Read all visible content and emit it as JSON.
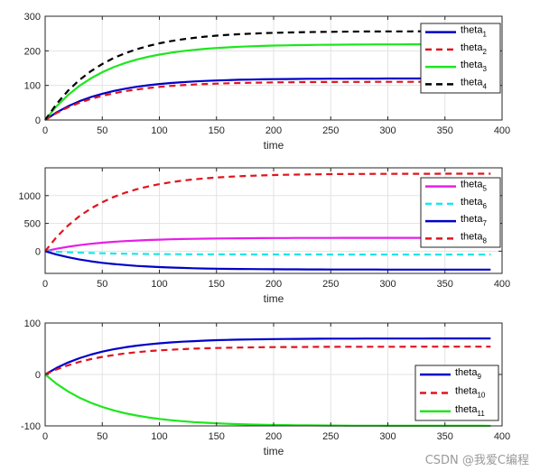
{
  "watermark": "CSDN @我爱C编程",
  "colors": {
    "blue": "#0000c8",
    "red": "#e0141e",
    "green": "#1ee61e",
    "black": "#000000",
    "magenta": "#e61ee6",
    "cyan": "#1ee6e6"
  },
  "chart_data": [
    {
      "type": "line",
      "xlabel": "time",
      "ylabel": "",
      "xlim": [
        0,
        400
      ],
      "ylim": [
        0,
        300
      ],
      "xticks": [
        0,
        50,
        100,
        150,
        200,
        250,
        300,
        350,
        400
      ],
      "yticks": [
        0,
        100,
        200,
        300
      ],
      "grid": true,
      "legend_position": "top-right",
      "x": [
        0,
        10,
        20,
        30,
        40,
        50,
        60,
        70,
        80,
        90,
        100,
        110,
        120,
        130,
        140,
        150,
        160,
        170,
        180,
        190,
        200,
        210,
        220,
        230,
        240,
        250,
        260,
        270,
        280,
        290,
        300,
        310,
        320,
        330,
        340,
        350,
        360,
        370,
        380,
        390
      ],
      "series": [
        {
          "name": "theta",
          "sub": "1",
          "color": "#0000c8",
          "dash": "solid",
          "values": [
            0,
            21.8,
            39.6,
            54.2,
            66.2,
            76.0,
            84.0,
            90.6,
            96.0,
            100.4,
            104.0,
            107.0,
            109.4,
            111.4,
            113.0,
            114.3,
            115.4,
            116.3,
            117.0,
            117.6,
            118.1,
            118.5,
            118.8,
            119.1,
            119.3,
            119.5,
            119.6,
            119.7,
            119.8,
            119.8,
            119.9,
            119.9,
            119.9,
            119.9,
            120.0,
            120.0,
            120.0,
            120.0,
            120.0,
            120.0
          ]
        },
        {
          "name": "theta",
          "sub": "2",
          "color": "#e0141e",
          "dash": "dashed",
          "values": [
            0,
            20.0,
            36.4,
            49.8,
            60.9,
            69.9,
            77.3,
            83.4,
            88.3,
            92.4,
            95.7,
            98.5,
            100.7,
            102.5,
            104.0,
            105.2,
            106.2,
            107.0,
            107.7,
            108.2,
            108.7,
            109.0,
            109.3,
            109.6,
            109.8,
            109.9,
            110.0,
            110.1,
            110.2,
            110.3,
            110.3,
            110.3,
            110.4,
            110.4,
            110.4,
            110.4,
            110.4,
            110.4,
            110.5,
            110.5
          ]
        },
        {
          "name": "theta",
          "sub": "3",
          "color": "#1ee61e",
          "dash": "solid",
          "values": [
            0,
            39.6,
            72.0,
            98.6,
            120.3,
            138.2,
            152.8,
            164.8,
            174.6,
            182.6,
            189.2,
            194.6,
            199.1,
            202.7,
            205.7,
            208.1,
            210.1,
            211.7,
            213.1,
            214.2,
            215.1,
            215.8,
            216.4,
            216.9,
            217.3,
            217.6,
            217.9,
            218.1,
            218.3,
            218.5,
            218.6,
            218.7,
            218.8,
            218.8,
            218.9,
            218.9,
            218.9,
            219.0,
            219.0,
            219.0
          ]
        },
        {
          "name": "theta",
          "sub": "4",
          "color": "#000000",
          "dash": "dashed",
          "values": [
            0,
            46.4,
            84.4,
            115.6,
            141.1,
            162.0,
            179.1,
            193.1,
            204.6,
            214.0,
            221.7,
            228.1,
            233.3,
            237.5,
            241.0,
            243.9,
            246.2,
            248.1,
            249.7,
            251.0,
            252.0,
            252.9,
            253.6,
            254.2,
            254.6,
            255.0,
            255.3,
            255.6,
            255.8,
            256.0,
            256.1,
            256.2,
            256.3,
            256.4,
            256.5,
            256.5,
            256.5,
            256.6,
            256.6,
            256.6
          ]
        }
      ]
    },
    {
      "type": "line",
      "xlabel": "time",
      "ylabel": "",
      "xlim": [
        0,
        400
      ],
      "ylim": [
        -400,
        1500
      ],
      "xticks": [
        0,
        50,
        100,
        150,
        200,
        250,
        300,
        350,
        400
      ],
      "yticks": [
        0,
        500,
        1000
      ],
      "grid": true,
      "legend_position": "top-right",
      "x": [
        0,
        10,
        20,
        30,
        40,
        50,
        60,
        70,
        80,
        90,
        100,
        110,
        120,
        130,
        140,
        150,
        160,
        170,
        180,
        190,
        200,
        210,
        220,
        230,
        240,
        250,
        260,
        270,
        280,
        290,
        300,
        310,
        320,
        330,
        340,
        350,
        360,
        370,
        380,
        390
      ],
      "series": [
        {
          "name": "theta",
          "sub": "5",
          "color": "#e61ee6",
          "dash": "solid",
          "values": [
            0,
            43.5,
            79.1,
            108.3,
            132.2,
            151.7,
            167.8,
            180.9,
            191.7,
            200.5,
            207.7,
            213.7,
            218.6,
            222.6,
            225.8,
            228.5,
            230.7,
            232.5,
            234.0,
            235.2,
            236.2,
            237.0,
            237.7,
            238.2,
            238.7,
            239.0,
            239.3,
            239.6,
            239.8,
            239.9,
            240.1,
            240.2,
            240.3,
            240.3,
            240.4,
            240.4,
            240.5,
            240.5,
            240.5,
            240.5
          ]
        },
        {
          "name": "theta",
          "sub": "6",
          "color": "#1ee6e6",
          "dash": "dashed",
          "values": [
            0,
            -10.9,
            -19.8,
            -27.1,
            -33.1,
            -38.0,
            -42.0,
            -45.3,
            -48.0,
            -50.2,
            -52.0,
            -53.5,
            -54.7,
            -55.7,
            -56.5,
            -57.1,
            -57.7,
            -58.1,
            -58.5,
            -58.8,
            -59.1,
            -59.3,
            -59.4,
            -59.6,
            -59.7,
            -59.8,
            -59.8,
            -59.9,
            -59.9,
            -60.0,
            -60.0,
            -60.0,
            -60.1,
            -60.1,
            -60.1,
            -60.1,
            -60.1,
            -60.1,
            -60.1,
            -60.1
          ]
        },
        {
          "name": "theta",
          "sub": "7",
          "color": "#0000c8",
          "dash": "solid",
          "values": [
            0,
            -60.0,
            -109.2,
            -149.5,
            -182.5,
            -209.5,
            -231.6,
            -249.7,
            -264.5,
            -276.7,
            -286.6,
            -294.8,
            -301.5,
            -307.0,
            -311.5,
            -315.1,
            -318.2,
            -320.6,
            -322.7,
            -324.3,
            -325.7,
            -326.8,
            -327.7,
            -328.5,
            -329.1,
            -329.6,
            -330.0,
            -330.4,
            -330.6,
            -330.9,
            -331.0,
            -331.2,
            -331.3,
            -331.4,
            -331.5,
            -331.6,
            -331.6,
            -331.7,
            -331.7,
            -331.7
          ]
        },
        {
          "name": "theta",
          "sub": "8",
          "color": "#e0141e",
          "dash": "dashed",
          "values": [
            0,
            252.9,
            460.0,
            629.5,
            768.3,
            881.9,
            975.0,
            1051.2,
            1113.5,
            1164.6,
            1206.4,
            1240.6,
            1268.6,
            1291.6,
            1310.4,
            1325.7,
            1338.3,
            1348.6,
            1357.1,
            1364.0,
            1369.6,
            1374.2,
            1378.0,
            1381.1,
            1383.6,
            1385.7,
            1387.4,
            1388.8,
            1389.9,
            1390.9,
            1391.6,
            1392.2,
            1392.7,
            1393.2,
            1393.5,
            1393.8,
            1394.0,
            1394.2,
            1394.4,
            1394.5
          ]
        }
      ]
    },
    {
      "type": "line",
      "xlabel": "time",
      "ylabel": "",
      "xlim": [
        0,
        400
      ],
      "ylim": [
        -100,
        100
      ],
      "xticks": [
        0,
        50,
        100,
        150,
        200,
        250,
        300,
        350,
        400
      ],
      "yticks": [
        -100,
        0,
        100
      ],
      "grid": true,
      "legend_position": "right",
      "x": [
        0,
        10,
        20,
        30,
        40,
        50,
        60,
        70,
        80,
        90,
        100,
        110,
        120,
        130,
        140,
        150,
        160,
        170,
        180,
        190,
        200,
        210,
        220,
        230,
        240,
        250,
        260,
        270,
        280,
        290,
        300,
        310,
        320,
        330,
        340,
        350,
        360,
        370,
        380,
        390
      ],
      "series": [
        {
          "name": "theta",
          "sub": "9",
          "color": "#0000c8",
          "dash": "solid",
          "values": [
            0,
            12.7,
            23.1,
            31.6,
            38.6,
            44.3,
            48.9,
            52.8,
            55.9,
            58.5,
            60.6,
            62.3,
            63.7,
            64.8,
            65.8,
            66.6,
            67.2,
            67.7,
            68.1,
            68.5,
            68.8,
            69.0,
            69.2,
            69.3,
            69.5,
            69.6,
            69.7,
            69.7,
            69.8,
            69.8,
            69.9,
            69.9,
            69.9,
            69.9,
            70.0,
            70.0,
            70.0,
            70.0,
            70.0,
            70.0
          ]
        },
        {
          "name": "theta",
          "sub": "10",
          "color": "#e0141e",
          "dash": "dashed",
          "values": [
            0,
            9.8,
            17.8,
            24.4,
            29.8,
            34.2,
            37.8,
            40.8,
            43.2,
            45.2,
            46.8,
            48.1,
            49.2,
            50.1,
            50.8,
            51.4,
            51.9,
            52.3,
            52.6,
            52.9,
            53.1,
            53.3,
            53.4,
            53.5,
            53.6,
            53.7,
            53.8,
            53.8,
            53.9,
            53.9,
            53.9,
            53.9,
            54.0,
            54.0,
            54.0,
            54.0,
            54.0,
            54.0,
            54.0,
            54.0
          ]
        },
        {
          "name": "theta",
          "sub": "11",
          "color": "#1ee61e",
          "dash": "solid",
          "values": [
            0,
            -18.1,
            -33.0,
            -45.1,
            -55.1,
            -63.2,
            -69.9,
            -75.4,
            -79.8,
            -83.5,
            -86.5,
            -88.9,
            -90.9,
            -92.6,
            -93.9,
            -95.0,
            -95.9,
            -96.7,
            -97.3,
            -97.8,
            -98.2,
            -98.5,
            -98.8,
            -99.0,
            -99.2,
            -99.3,
            -99.5,
            -99.6,
            -99.7,
            -99.7,
            -99.8,
            -99.8,
            -99.8,
            -99.9,
            -99.9,
            -99.9,
            -99.9,
            -99.9,
            -99.9,
            -100.0
          ]
        }
      ]
    }
  ]
}
